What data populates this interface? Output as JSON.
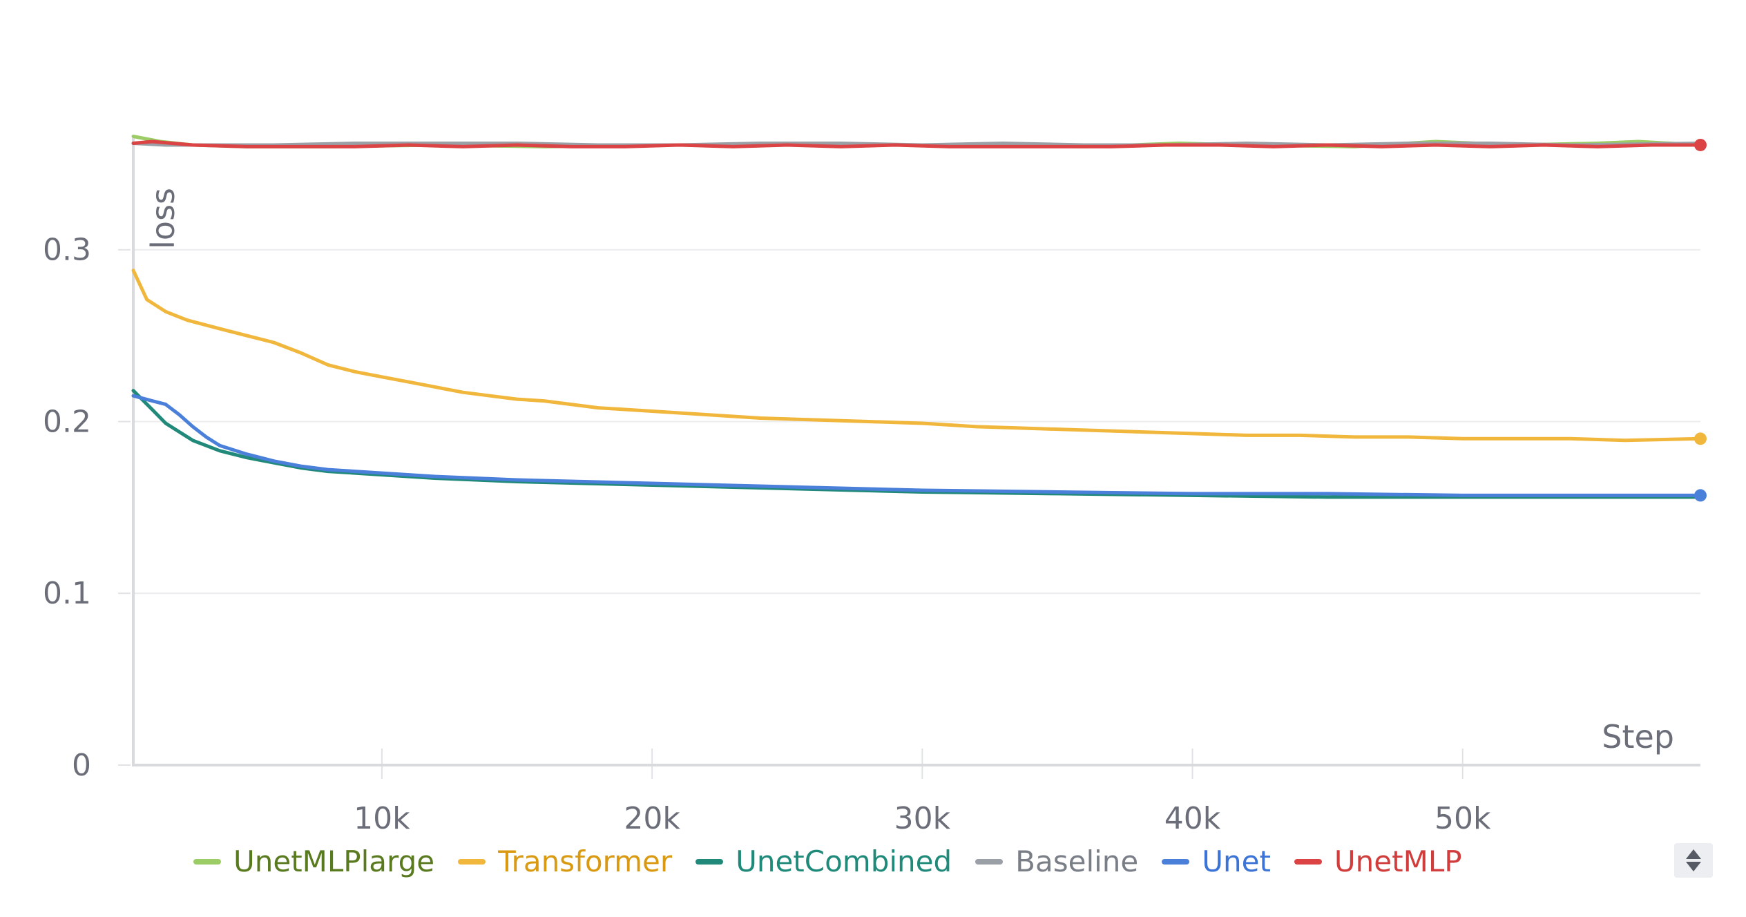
{
  "chart_data": {
    "type": "line",
    "title": "",
    "xlabel": "Step",
    "ylabel": "loss",
    "xlim": [
      800,
      58800
    ],
    "ylim": [
      0,
      0.365
    ],
    "xticks": [
      10000,
      20000,
      30000,
      40000,
      50000
    ],
    "xtick_labels": [
      "10k",
      "20k",
      "30k",
      "40k",
      "50k"
    ],
    "yticks": [
      0,
      0.1,
      0.2,
      0.3
    ],
    "ytick_labels": [
      "0",
      "0.1",
      "0.2",
      "0.3"
    ],
    "grid": true,
    "legend_position": "bottom",
    "series": [
      {
        "name": "UnetMLPlarge",
        "color": "#9ccc65",
        "label_color": "#5a7a1f",
        "x": [
          800,
          1800,
          3000,
          5000,
          8000,
          12000,
          16000,
          20000,
          24000,
          28000,
          32000,
          36000,
          39500,
          42000,
          46000,
          49000,
          52000,
          55000,
          56500,
          58800
        ],
        "y": [
          0.366,
          0.363,
          0.361,
          0.36,
          0.36,
          0.361,
          0.36,
          0.361,
          0.361,
          0.361,
          0.361,
          0.36,
          0.362,
          0.361,
          0.36,
          0.363,
          0.361,
          0.362,
          0.363,
          0.361
        ]
      },
      {
        "name": "Transformer",
        "color": "#f0b73c",
        "label_color": "#d99a12",
        "x": [
          800,
          1300,
          2000,
          2800,
          4000,
          5000,
          6000,
          7000,
          8000,
          9000,
          10000,
          11000,
          12000,
          13000,
          14000,
          15000,
          16000,
          18000,
          20000,
          22000,
          24000,
          26000,
          28000,
          30000,
          32000,
          34000,
          36000,
          38000,
          40000,
          42000,
          44000,
          46000,
          48000,
          50000,
          52000,
          54000,
          56000,
          58800
        ],
        "y": [
          0.288,
          0.271,
          0.264,
          0.259,
          0.254,
          0.25,
          0.246,
          0.24,
          0.233,
          0.229,
          0.226,
          0.223,
          0.22,
          0.217,
          0.215,
          0.213,
          0.212,
          0.208,
          0.206,
          0.204,
          0.202,
          0.201,
          0.2,
          0.199,
          0.197,
          0.196,
          0.195,
          0.194,
          0.193,
          0.192,
          0.192,
          0.191,
          0.191,
          0.19,
          0.19,
          0.19,
          0.189,
          0.19
        ]
      },
      {
        "name": "UnetCombined",
        "color": "#20897a",
        "label_color": "#1f8a7a",
        "x": [
          800,
          1500,
          2000,
          3000,
          4000,
          5000,
          6000,
          7000,
          8000,
          10000,
          12000,
          15000,
          20000,
          25000,
          30000,
          35000,
          40000,
          45000,
          50000,
          55000,
          58800
        ],
        "y": [
          0.218,
          0.207,
          0.199,
          0.189,
          0.183,
          0.179,
          0.176,
          0.173,
          0.171,
          0.169,
          0.167,
          0.165,
          0.163,
          0.161,
          0.159,
          0.158,
          0.157,
          0.156,
          0.156,
          0.156,
          0.156
        ]
      },
      {
        "name": "Baseline",
        "color": "#9aa0a6",
        "label_color": "#7a7f87",
        "x": [
          800,
          2000,
          4000,
          6000,
          9000,
          12000,
          15000,
          18000,
          21000,
          24000,
          27000,
          30000,
          33000,
          36000,
          39000,
          42000,
          45000,
          48000,
          51000,
          54000,
          58800
        ],
        "y": [
          0.362,
          0.361,
          0.361,
          0.361,
          0.362,
          0.362,
          0.362,
          0.361,
          0.361,
          0.362,
          0.362,
          0.361,
          0.362,
          0.361,
          0.361,
          0.362,
          0.361,
          0.362,
          0.362,
          0.361,
          0.362
        ]
      },
      {
        "name": "Unet",
        "color": "#4a80d9",
        "label_color": "#3b73d6",
        "x": [
          800,
          1500,
          2000,
          2500,
          3000,
          3500,
          4000,
          5000,
          6000,
          7000,
          8000,
          10000,
          12000,
          15000,
          20000,
          25000,
          30000,
          35000,
          40000,
          45000,
          50000,
          55000,
          58800
        ],
        "y": [
          0.215,
          0.212,
          0.21,
          0.204,
          0.197,
          0.191,
          0.186,
          0.181,
          0.177,
          0.174,
          0.172,
          0.17,
          0.168,
          0.166,
          0.164,
          0.162,
          0.16,
          0.159,
          0.158,
          0.158,
          0.157,
          0.157,
          0.157
        ]
      },
      {
        "name": "UnetMLP",
        "color": "#dc4344",
        "label_color": "#d13c3c",
        "x": [
          800,
          1500,
          3000,
          5000,
          7000,
          9000,
          11000,
          13000,
          15000,
          17000,
          19000,
          21000,
          23000,
          25000,
          27000,
          29000,
          31000,
          33000,
          35000,
          37000,
          39000,
          41000,
          43000,
          45000,
          47000,
          49000,
          51000,
          53000,
          55000,
          57000,
          58800
        ],
        "y": [
          0.362,
          0.363,
          0.361,
          0.36,
          0.36,
          0.36,
          0.361,
          0.36,
          0.361,
          0.36,
          0.36,
          0.361,
          0.36,
          0.361,
          0.36,
          0.361,
          0.36,
          0.36,
          0.36,
          0.36,
          0.361,
          0.361,
          0.36,
          0.361,
          0.36,
          0.361,
          0.36,
          0.361,
          0.36,
          0.361,
          0.361
        ]
      }
    ]
  }
}
